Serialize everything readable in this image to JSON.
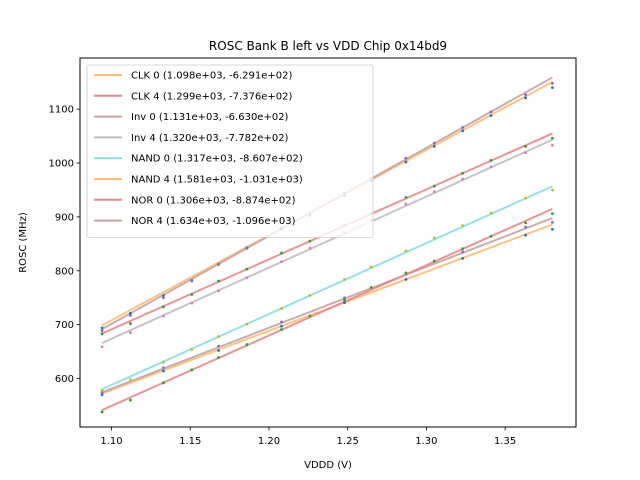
{
  "chart_data": {
    "type": "line",
    "title": "ROSC Bank B left vs VDD Chip 0x14bd9",
    "xlabel": "VDDD (V)",
    "ylabel": "ROSC (MHz)",
    "xlim": [
      1.08,
      1.395
    ],
    "ylim": [
      510,
      1195
    ],
    "xticks": [
      1.1,
      1.15,
      1.2,
      1.25,
      1.3,
      1.35
    ],
    "xtick_labels": [
      "1.10",
      "1.15",
      "1.20",
      "1.25",
      "1.30",
      "1.35"
    ],
    "yticks": [
      600,
      700,
      800,
      900,
      1000,
      1100
    ],
    "ytick_labels": [
      "600",
      "700",
      "800",
      "900",
      "1000",
      "1100"
    ],
    "grid": false,
    "legend_position": "top-left",
    "fit_x_range": [
      1.094,
      1.38
    ],
    "series": [
      {
        "name": "CLK 0",
        "label": "CLK 0 (1.098e+03, -6.291e+02)",
        "slope": 1098,
        "intercept": -629.1,
        "color": "#ffbb78",
        "points": {
          "x": [
            1.094,
            1.133,
            1.168,
            1.208,
            1.248,
            1.287,
            1.323,
            1.363,
            1.38
          ],
          "y": [
            570,
            614,
            652,
            697,
            741,
            784,
            823,
            866,
            877
          ],
          "color": "#1f77b4"
        }
      },
      {
        "name": "CLK 4",
        "label": "CLK 4 (1.299e+03, -7.376e+02)",
        "slope": 1299,
        "intercept": -737.6,
        "color": "#e8888a",
        "points": {
          "x": [
            1.094,
            1.112,
            1.133,
            1.151,
            1.168,
            1.186,
            1.208,
            1.226,
            1.248,
            1.265,
            1.287,
            1.305,
            1.323,
            1.341,
            1.363,
            1.38
          ],
          "y": [
            683,
            702,
            733,
            756,
            781,
            803,
            833,
            855,
            884,
            906,
            936,
            957,
            981,
            1005,
            1031,
            1046
          ],
          "color": "#2ca02c"
        }
      },
      {
        "name": "Inv 0",
        "label": "Inv 0 (1.131e+03, -6.630e+02)",
        "slope": 1131,
        "intercept": -663.0,
        "color": "#c5a49e",
        "points": {
          "x": [
            1.094,
            1.133,
            1.168,
            1.208,
            1.248,
            1.287,
            1.323,
            1.363,
            1.38
          ],
          "y": [
            574,
            620,
            660,
            705,
            750,
            795,
            835,
            881,
            890
          ],
          "color": "#9467bd"
        }
      },
      {
        "name": "Inv 4",
        "label": "Inv 4 (1.320e+03, -7.782e+02)",
        "slope": 1320,
        "intercept": -778.2,
        "color": "#bfbfbf",
        "points": {
          "x": [
            1.094,
            1.112,
            1.133,
            1.151,
            1.168,
            1.186,
            1.208,
            1.226,
            1.248,
            1.265,
            1.287,
            1.305,
            1.323,
            1.341,
            1.363,
            1.38
          ],
          "y": [
            659,
            685,
            716,
            740,
            763,
            787,
            817,
            842,
            870,
            894,
            924,
            947,
            970,
            993,
            1019,
            1033
          ],
          "color": "#e377c2"
        }
      },
      {
        "name": "NAND 0",
        "label": "NAND 0 (1.317e+03, -8.607e+02)",
        "slope": 1317,
        "intercept": -860.7,
        "color": "#8adfe6",
        "points": {
          "x": [
            1.094,
            1.112,
            1.133,
            1.151,
            1.168,
            1.186,
            1.208,
            1.226,
            1.248,
            1.265,
            1.287,
            1.305,
            1.323,
            1.341,
            1.363,
            1.38
          ],
          "y": [
            578,
            598,
            630,
            654,
            678,
            701,
            730,
            754,
            784,
            807,
            837,
            861,
            884,
            907,
            935,
            950
          ],
          "color": "#bcbd22"
        }
      },
      {
        "name": "NAND 4",
        "label": "NAND 4 (1.581e+03, -1.031e+03)",
        "slope": 1581,
        "intercept": -1031.0,
        "color": "#ffbb78",
        "points": {
          "x": [
            1.094,
            1.112,
            1.133,
            1.151,
            1.168,
            1.186,
            1.208,
            1.226,
            1.248,
            1.265,
            1.287,
            1.305,
            1.323,
            1.341,
            1.363,
            1.38
          ],
          "y": [
            694,
            721,
            754,
            782,
            812,
            842,
            877,
            903,
            940,
            967,
            1002,
            1031,
            1060,
            1088,
            1121,
            1140
          ],
          "color": "#1f77b4"
        }
      },
      {
        "name": "NOR 0",
        "label": "NOR 0 (1.306e+03, -8.874e+02)",
        "slope": 1306,
        "intercept": -887.4,
        "color": "#e8888a",
        "points": {
          "x": [
            1.094,
            1.112,
            1.133,
            1.151,
            1.168,
            1.186,
            1.208,
            1.226,
            1.248,
            1.265,
            1.287,
            1.305,
            1.323,
            1.341,
            1.363,
            1.38
          ],
          "y": [
            538,
            560,
            592,
            616,
            639,
            663,
            691,
            716,
            746,
            769,
            796,
            818,
            841,
            864,
            889,
            906
          ],
          "color": "#2ca02c"
        }
      },
      {
        "name": "NOR 4",
        "label": "NOR 4 (1.634e+03, -1.096e+03)",
        "slope": 1634,
        "intercept": -1096.0,
        "color": "#c5a49e",
        "points": {
          "x": [
            1.094,
            1.112,
            1.133,
            1.151,
            1.168,
            1.186,
            1.208,
            1.226,
            1.248,
            1.265,
            1.287,
            1.305,
            1.323,
            1.341,
            1.363,
            1.38
          ],
          "y": [
            689,
            717,
            750,
            781,
            812,
            843,
            879,
            907,
            944,
            972,
            1009,
            1037,
            1066,
            1095,
            1127,
            1148
          ],
          "color": "#9467bd"
        }
      }
    ]
  }
}
